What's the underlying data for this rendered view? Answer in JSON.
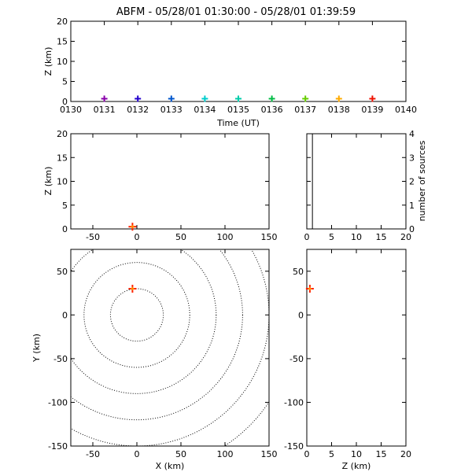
{
  "title": "ABFM - 05/28/01 01:30:00 - 05/28/01 01:39:59",
  "colors": {
    "axes": "#000000",
    "source_marker": "#ff2200",
    "source_marker_center": "#ff8800",
    "time_markers": [
      "#8800aa",
      "#2200cc",
      "#0055cc",
      "#00cccc",
      "#00ccaa",
      "#00bb44",
      "#66cc00",
      "#ffaa00",
      "#ee1100"
    ]
  },
  "chart_data": [
    {
      "id": "time_height",
      "type": "scatter",
      "xlabel": "Time (UT)",
      "ylabel": "Z (km)",
      "x_tick_labels": [
        "0130",
        "0131",
        "0132",
        "0133",
        "0134",
        "0135",
        "0136",
        "0137",
        "0138",
        "0139",
        "0140"
      ],
      "xlim": [
        0,
        10
      ],
      "ylim": [
        0,
        20
      ],
      "y_ticks": [
        0,
        5,
        10,
        15,
        20
      ],
      "points": [
        {
          "t": 1.0,
          "z": 0.3
        },
        {
          "t": 2.0,
          "z": 0.3
        },
        {
          "t": 3.0,
          "z": 0.3
        },
        {
          "t": 4.0,
          "z": 0.3
        },
        {
          "t": 5.0,
          "z": 0.3
        },
        {
          "t": 6.0,
          "z": 0.3
        },
        {
          "t": 7.0,
          "z": 0.3
        },
        {
          "t": 8.0,
          "z": 0.3
        },
        {
          "t": 9.0,
          "z": 0.3
        }
      ]
    },
    {
      "id": "x_height",
      "type": "scatter",
      "xlabel": "",
      "ylabel": "Z (km)",
      "xlim": [
        -75,
        150
      ],
      "ylim": [
        0,
        20
      ],
      "x_ticks": [
        -50,
        0,
        50,
        100,
        150
      ],
      "y_ticks": [
        0,
        5,
        10,
        15,
        20
      ],
      "points": [
        {
          "x": -5,
          "z": 0.3
        }
      ]
    },
    {
      "id": "height_histogram",
      "type": "bar",
      "xlabel": "",
      "ylabel": "number of sources",
      "xlim": [
        0,
        20
      ],
      "ylim": [
        0,
        4
      ],
      "x_ticks": [
        0,
        5,
        10,
        15,
        20
      ],
      "y_ticks": [
        0,
        1,
        2,
        3,
        4
      ],
      "bins": [
        {
          "z0": 0,
          "z1": 0.5,
          "count": 4
        }
      ]
    },
    {
      "id": "plan_view",
      "type": "scatter",
      "xlabel": "X (km)",
      "ylabel": "Y (km)",
      "xlim": [
        -75,
        150
      ],
      "ylim": [
        -150,
        75
      ],
      "x_ticks": [
        -50,
        0,
        50,
        100,
        150
      ],
      "y_ticks": [
        -150,
        -100,
        -50,
        0,
        50
      ],
      "range_rings_km": [
        30,
        60,
        90,
        120,
        150,
        180
      ],
      "points": [
        {
          "x": -5,
          "y": 30
        }
      ]
    },
    {
      "id": "z_y_view",
      "type": "scatter",
      "xlabel": "Z (km)",
      "ylabel": "",
      "xlim": [
        0,
        20
      ],
      "ylim": [
        -150,
        75
      ],
      "x_ticks": [
        0,
        5,
        10,
        15,
        20
      ],
      "y_ticks": [
        -150,
        -100,
        -50,
        0,
        50
      ],
      "points": [
        {
          "z": 0.3,
          "y": 30
        }
      ]
    }
  ]
}
